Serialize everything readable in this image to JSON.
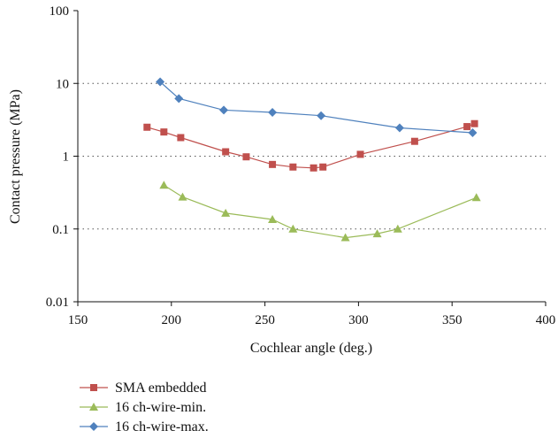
{
  "chart_data": {
    "type": "line",
    "xlabel": "Cochlear angle (deg.)",
    "ylabel": "Contact pressure (MPa)",
    "xlim": [
      150,
      400
    ],
    "ylim": [
      0.01,
      100
    ],
    "yscale": "log",
    "xticks": [
      "150",
      "200",
      "250",
      "300",
      "350",
      "400"
    ],
    "yticks": [
      "0.01",
      "0.1",
      "1",
      "10",
      "100"
    ],
    "grid": "horizontal dotted",
    "legend_position": "bottom-left",
    "series": [
      {
        "name": "SMA embedded",
        "color": "#c0504d",
        "marker": "square",
        "points": [
          {
            "x": 187,
            "y": 2.5
          },
          {
            "x": 196,
            "y": 2.15
          },
          {
            "x": 205,
            "y": 1.8
          },
          {
            "x": 229,
            "y": 1.15
          },
          {
            "x": 240,
            "y": 0.98
          },
          {
            "x": 254,
            "y": 0.77
          },
          {
            "x": 265,
            "y": 0.71
          },
          {
            "x": 276,
            "y": 0.69
          },
          {
            "x": 281,
            "y": 0.71
          },
          {
            "x": 301,
            "y": 1.06
          },
          {
            "x": 330,
            "y": 1.6
          },
          {
            "x": 358,
            "y": 2.55
          },
          {
            "x": 362,
            "y": 2.8
          }
        ]
      },
      {
        "name": "16 ch-wire-min.",
        "color": "#9bbb59",
        "marker": "triangle",
        "points": [
          {
            "x": 196,
            "y": 0.4
          },
          {
            "x": 206,
            "y": 0.275
          },
          {
            "x": 229,
            "y": 0.165
          },
          {
            "x": 254,
            "y": 0.135
          },
          {
            "x": 265,
            "y": 0.1
          },
          {
            "x": 293,
            "y": 0.076
          },
          {
            "x": 310,
            "y": 0.086
          },
          {
            "x": 321,
            "y": 0.1
          },
          {
            "x": 363,
            "y": 0.27
          }
        ]
      },
      {
        "name": "16 ch-wire-max.",
        "color": "#4f81bd",
        "marker": "diamond",
        "points": [
          {
            "x": 194,
            "y": 10.5
          },
          {
            "x": 204,
            "y": 6.2
          },
          {
            "x": 228,
            "y": 4.3
          },
          {
            "x": 254,
            "y": 4.0
          },
          {
            "x": 280,
            "y": 3.6
          },
          {
            "x": 322,
            "y": 2.45
          },
          {
            "x": 361,
            "y": 2.1
          }
        ]
      }
    ]
  }
}
